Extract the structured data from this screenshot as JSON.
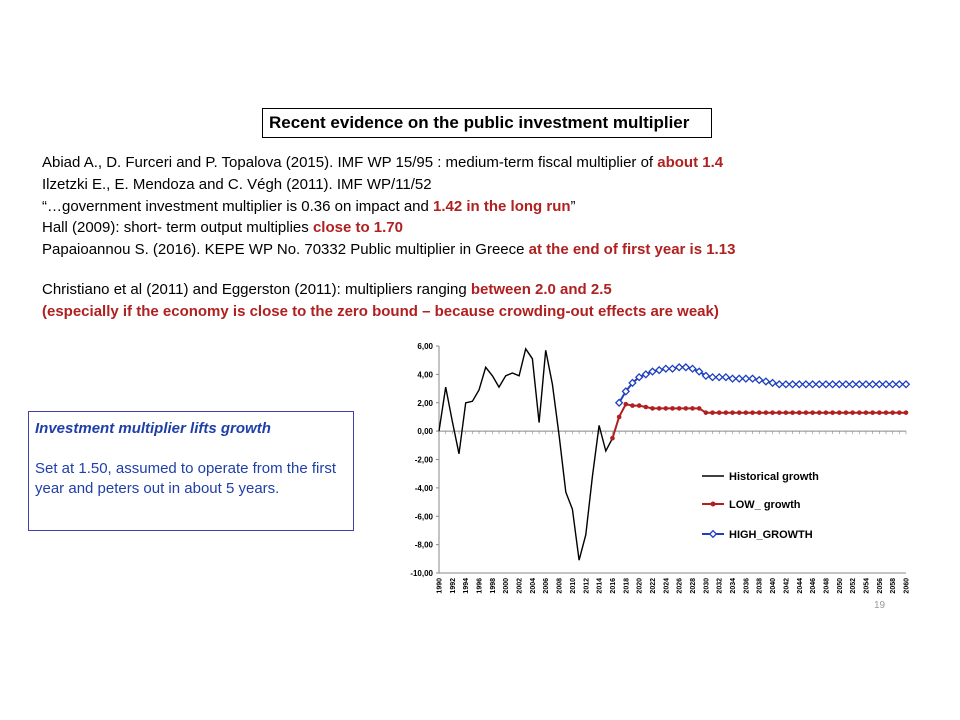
{
  "slide": {
    "title": "Recent evidence on the public investment multiplier",
    "page_number": "19"
  },
  "references": [
    {
      "text": "Abiad A., D. Furceri and P. Topalova (2015). IMF WP 15/95  : medium-term fiscal multiplier of ",
      "highlight": "about 1.4"
    },
    {
      "text": "Ilzetzki E., E. Mendoza and C. Végh (2011). IMF WP/11/52",
      "highlight": ""
    },
    {
      "text": "“…government investment multiplier is 0.36 on impact and ",
      "highlight": "1.42 in the long run",
      "suffix": "”"
    },
    {
      "text": "Hall (2009): short- term output multiplies ",
      "highlight": "close to 1.70"
    },
    {
      "text": "Papaioannou S. (2016). KEPE WP No. 70332 Public multiplier in Greece ",
      "highlight": "at the end of first year is 1.13"
    }
  ],
  "references2": {
    "line1_text": "Christiano et al (2011) and Eggerston (2011):  multipliers ranging ",
    "line1_highlight": "between 2.0 and 2.5",
    "line2": "(especially if the economy is close to the zero bound – because crowding-out effects are weak)"
  },
  "note": {
    "heading": "Investment multiplier lifts growth",
    "body": "Set at 1.50, assumed to operate from the first year and peters out in about 5 years."
  },
  "chart_data": {
    "type": "line",
    "x_start": 1990,
    "x_end": 2060,
    "ylim": [
      -10,
      6
    ],
    "y_ticks": [
      "-10,00",
      "-8,00",
      "-6,00",
      "-4,00",
      "-2,00",
      "0,00",
      "2,00",
      "4,00",
      "6,00"
    ],
    "x_tick_labels": [
      "1990",
      "1992",
      "1994",
      "1996",
      "1998",
      "2000",
      "2002",
      "2004",
      "2006",
      "2008",
      "2010",
      "2012",
      "2014",
      "2016",
      "2018",
      "2020",
      "2022",
      "2024",
      "2026",
      "2028",
      "2030",
      "2032",
      "2034",
      "2036",
      "2038",
      "2040",
      "2042",
      "2044",
      "2046",
      "2048",
      "2050",
      "2052",
      "2054",
      "2056",
      "2058",
      "2060"
    ],
    "legend_position": "inside-lower-right",
    "series": [
      {
        "name": "Historical growth",
        "color": "#000000",
        "marker": "none",
        "x": [
          1990,
          1991,
          1992,
          1993,
          1994,
          1995,
          1996,
          1997,
          1998,
          1999,
          2000,
          2001,
          2002,
          2003,
          2004,
          2005,
          2006,
          2007,
          2008,
          2009,
          2010,
          2011,
          2012,
          2013,
          2014,
          2015,
          2016
        ],
        "values": [
          0.0,
          3.1,
          0.7,
          -1.6,
          2.0,
          2.1,
          2.9,
          4.5,
          3.9,
          3.1,
          3.9,
          4.1,
          3.9,
          5.8,
          5.1,
          0.6,
          5.7,
          3.3,
          -0.3,
          -4.3,
          -5.5,
          -9.1,
          -7.3,
          -3.2,
          0.4,
          -1.4,
          -0.5
        ]
      },
      {
        "name": "LOW_ growth",
        "color": "#b02020",
        "marker": "circle",
        "x": [
          2016,
          2017,
          2018,
          2019,
          2020,
          2021,
          2022,
          2023,
          2024,
          2025,
          2026,
          2027,
          2028,
          2029,
          2030,
          2031,
          2032,
          2033,
          2034,
          2035,
          2036,
          2037,
          2038,
          2039,
          2040,
          2041,
          2042,
          2043,
          2044,
          2045,
          2046,
          2047,
          2048,
          2049,
          2050,
          2051,
          2052,
          2053,
          2054,
          2055,
          2056,
          2057,
          2058,
          2059,
          2060
        ],
        "values": [
          -0.5,
          1.0,
          1.9,
          1.8,
          1.8,
          1.7,
          1.6,
          1.6,
          1.6,
          1.6,
          1.6,
          1.6,
          1.6,
          1.6,
          1.3,
          1.3,
          1.3,
          1.3,
          1.3,
          1.3,
          1.3,
          1.3,
          1.3,
          1.3,
          1.3,
          1.3,
          1.3,
          1.3,
          1.3,
          1.3,
          1.3,
          1.3,
          1.3,
          1.3,
          1.3,
          1.3,
          1.3,
          1.3,
          1.3,
          1.3,
          1.3,
          1.3,
          1.3,
          1.3,
          1.3
        ]
      },
      {
        "name": "HIGH_GROWTH",
        "color": "#1f3fc0",
        "marker": "diamond",
        "x": [
          2017,
          2018,
          2019,
          2020,
          2021,
          2022,
          2023,
          2024,
          2025,
          2026,
          2027,
          2028,
          2029,
          2030,
          2031,
          2032,
          2033,
          2034,
          2035,
          2036,
          2037,
          2038,
          2039,
          2040,
          2041,
          2042,
          2043,
          2044,
          2045,
          2046,
          2047,
          2048,
          2049,
          2050,
          2051,
          2052,
          2053,
          2054,
          2055,
          2056,
          2057,
          2058,
          2059,
          2060
        ],
        "values": [
          2.0,
          2.8,
          3.4,
          3.8,
          4.0,
          4.2,
          4.3,
          4.4,
          4.4,
          4.5,
          4.5,
          4.4,
          4.2,
          3.9,
          3.8,
          3.8,
          3.8,
          3.7,
          3.7,
          3.7,
          3.7,
          3.6,
          3.5,
          3.4,
          3.3,
          3.3,
          3.3,
          3.3,
          3.3,
          3.3,
          3.3,
          3.3,
          3.3,
          3.3,
          3.3,
          3.3,
          3.3,
          3.3,
          3.3,
          3.3,
          3.3,
          3.3,
          3.3,
          3.3
        ]
      }
    ]
  }
}
